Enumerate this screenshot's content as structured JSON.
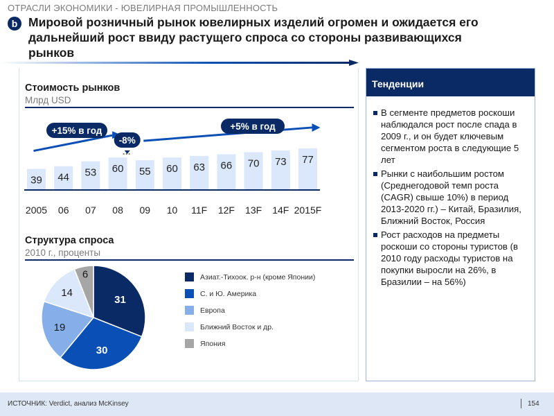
{
  "header": {
    "section": "ОТРАСЛИ ЭКОНОМИКИ - ЮВЕЛИРНАЯ ПРОМЫШЛЕННОСТЬ",
    "badge": "b",
    "headline_lines": [
      "Мировой розничный рынок ювелирных изделий огромен и ожидается его",
      "дальнейший рост ввиду растущего спроса со стороны развивающихся",
      "рынков"
    ]
  },
  "market": {
    "title": "Стоимость рынков",
    "unit": "Млрд USD"
  },
  "demand": {
    "title": "Структура спроса",
    "unit": "2010 г., проценты"
  },
  "trends": {
    "title": "Тенденции",
    "bullets": [
      "В сегменте предметов роскоши наблюдался рост после спада в 2009 г., и он будет ключевым сегментом роста в следующие 5 лет",
      "Рынки с наибольшим ростом (Среднегодовой темп роста (CAGR) свыше 10%) в период 2013-2020 гг.) – Китай, Бразилия, Ближний Восток, Россия",
      "Рост расходов на предметы роскоши со стороны туристов (в 2010 году расходы туристов на покупки выросли на 26%, в Бразилии – на 56%)"
    ]
  },
  "colors": {
    "navy": "#0a2a66",
    "bar": "#dbe8fb",
    "pie": [
      "#0a2a66",
      "#0a4fb5",
      "#86aee8",
      "#dbe8fb",
      "#a6a6a6"
    ]
  },
  "chart_data": [
    {
      "type": "bar",
      "title": "Стоимость рынков",
      "ylabel": "Млрд USD",
      "categories": [
        "2005",
        "06",
        "07",
        "08",
        "09",
        "10",
        "11F",
        "12F",
        "13F",
        "14F",
        "2015F"
      ],
      "values": [
        39,
        44,
        53,
        60,
        55,
        60,
        63,
        66,
        70,
        73,
        77
      ],
      "ylim": [
        0,
        80
      ],
      "annotations": [
        {
          "text": "+15% в год",
          "from": 0,
          "to": 3
        },
        {
          "text": "-8%",
          "from": 3,
          "to": 4
        },
        {
          "text": "+5% в год",
          "from": 4,
          "to": 10
        }
      ]
    },
    {
      "type": "pie",
      "title": "Структура спроса",
      "subtitle": "2010 г., проценты",
      "labels": [
        "Азиат.-Тихоок. р-н (кроме Японии)",
        "С. и Ю. Америка",
        "Европа",
        "Ближний Восток и др.",
        "Япония"
      ],
      "values": [
        31,
        30,
        19,
        14,
        6
      ],
      "legend": "right"
    }
  ],
  "footer": {
    "source": "ИСТОЧНИК: Verdict, анализ McKinsey",
    "page": "154"
  }
}
